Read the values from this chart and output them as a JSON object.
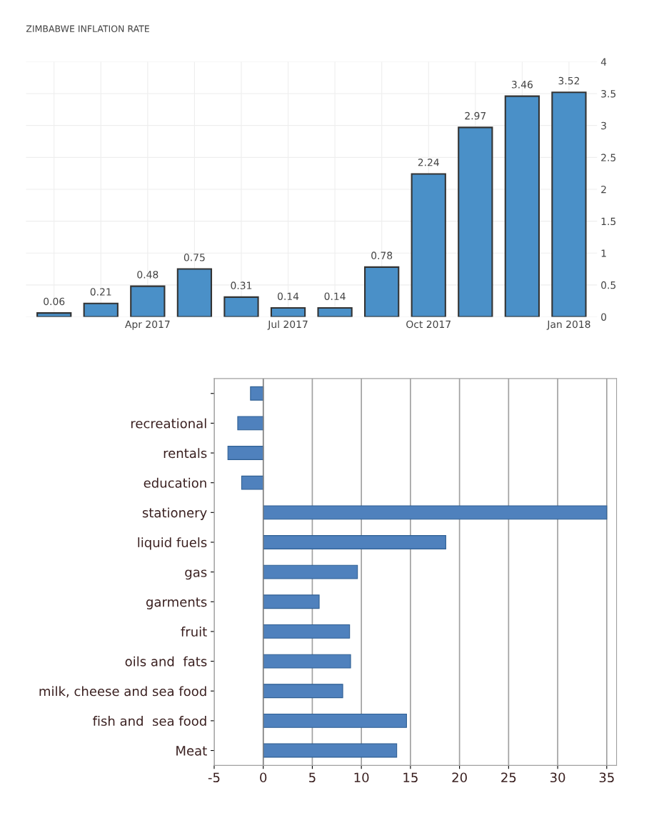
{
  "chart_data": [
    {
      "type": "bar",
      "title": "ZIMBABWE INFLATION RATE",
      "categories": [
        null,
        null,
        "Apr 2017",
        null,
        null,
        "Jul 2017",
        null,
        null,
        "Oct 2017",
        null,
        null,
        "Jan 2018"
      ],
      "values": [
        0.06,
        0.21,
        0.48,
        0.75,
        0.31,
        0.14,
        0.14,
        0.78,
        2.24,
        2.97,
        3.46,
        3.52
      ],
      "color": "#4a90c8",
      "data_labels": true,
      "ylim": [
        0,
        4
      ],
      "yticks": [
        0,
        0.5,
        1,
        1.5,
        2,
        2.5,
        3,
        3.5,
        4
      ],
      "grid": true
    },
    {
      "type": "bar",
      "orientation": "horizontal",
      "categories": [
        null,
        "recreational",
        "rentals",
        "education",
        "stationery",
        "liquid fuels",
        "gas",
        "garments",
        "fruit",
        "oils and  fats",
        "milk, cheese and sea food",
        "fish and  sea food",
        "Meat"
      ],
      "values": [
        -1.3,
        -2.6,
        -3.6,
        -2.2,
        35.0,
        18.6,
        9.6,
        5.7,
        8.8,
        8.9,
        8.1,
        14.6,
        13.6
      ],
      "color": "#4f81bd",
      "xlim": [
        -5,
        36
      ],
      "xticks": [
        -5,
        0,
        5,
        10,
        15,
        20,
        25,
        30,
        35
      ],
      "grid": "x"
    }
  ]
}
